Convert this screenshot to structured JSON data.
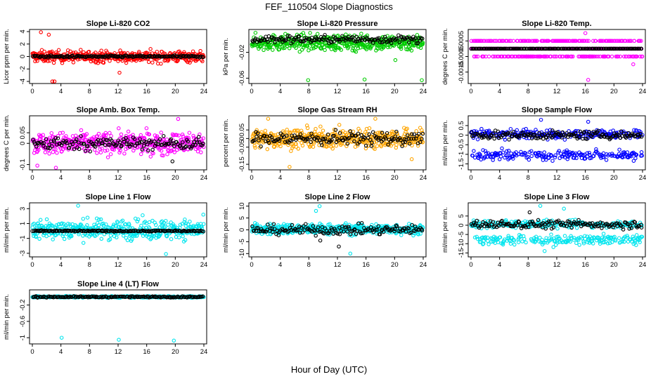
{
  "title": "FEF_110504  Slope Diagnostics",
  "xlabel": "Hour of Day (UTC)",
  "x_ticks": [
    0,
    4,
    8,
    12,
    16,
    20,
    24
  ],
  "x_range": [
    0,
    24
  ],
  "colors": {
    "black": "#000000",
    "red": "#ff0000",
    "green": "#00cc00",
    "magenta": "#ff00ff",
    "orange": "#ffa500",
    "blue": "#0000ff",
    "cyan": "#00e5ee"
  },
  "chart_data": [
    {
      "type": "scatter",
      "title": "Slope Li-820 CO2",
      "ylabel": "Licor ppm per min.",
      "y_ticks": [
        -4,
        -2,
        0,
        2,
        4
      ],
      "ylim": [
        -4.0,
        4.0
      ],
      "series": [
        {
          "color": "#ff0000",
          "pattern": "noise",
          "center": 0.0,
          "spread": 0.9,
          "outliers": [
            [
              1.2,
              3.9
            ],
            [
              2.8,
              -4.0
            ],
            [
              3.1,
              -4.0
            ],
            [
              12.2,
              -2.6
            ],
            [
              2.3,
              3.5
            ]
          ]
        },
        {
          "color": "#000000",
          "pattern": "noise",
          "center": 0.0,
          "spread": 0.15,
          "outliers": []
        }
      ]
    },
    {
      "type": "scatter",
      "title": "Slope Li-820 Pressure",
      "ylabel": "kPa per min.",
      "y_ticks": [
        -0.06,
        -0.02
      ],
      "ylim": [
        -0.065,
        0.012
      ],
      "series": [
        {
          "color": "#00cc00",
          "pattern": "noise",
          "center": -0.005,
          "spread": 0.012,
          "outliers": [
            [
              7.9,
              -0.063
            ],
            [
              15.8,
              -0.062
            ],
            [
              23.8,
              -0.063
            ],
            [
              20.1,
              -0.032
            ]
          ]
        },
        {
          "color": "#000000",
          "pattern": "noise",
          "center": 0.0,
          "spread": 0.006,
          "outliers": []
        }
      ]
    },
    {
      "type": "scatter",
      "title": "Slope Li-820 Temp.",
      "ylabel": "degrees C per min.",
      "y_ticks": [
        -0.0015,
        -0.0005,
        0.0005
      ],
      "ylim": [
        -0.0021,
        0.0011
      ],
      "series": [
        {
          "color": "#ff00ff",
          "pattern": "levels",
          "levels": [
            -0.0005,
            0.0,
            0.0005
          ],
          "outliers": [
            [
              16.4,
              -0.002
            ],
            [
              22.7,
              -0.001
            ],
            [
              16.0,
              0.001
            ]
          ]
        },
        {
          "color": "#000000",
          "pattern": "levels",
          "levels": [
            0.0
          ],
          "outliers": []
        }
      ]
    },
    {
      "type": "scatter",
      "title": "Slope Amb. Box Temp.",
      "ylabel": "degrees C per min.",
      "y_ticks": [
        -0.1,
        0.0,
        0.05
      ],
      "ylim": [
        -0.115,
        0.12
      ],
      "series": [
        {
          "color": "#ff00ff",
          "pattern": "noise",
          "center": 0.0,
          "spread": 0.05,
          "outliers": [
            [
              0.7,
              -0.105
            ],
            [
              3.3,
              -0.115
            ],
            [
              20.4,
              0.115
            ]
          ]
        },
        {
          "color": "#000000",
          "pattern": "noise",
          "center": 0.0,
          "spread": 0.03,
          "outliers": [
            [
              19.6,
              -0.085
            ]
          ]
        }
      ]
    },
    {
      "type": "scatter",
      "title": "Slope Gas Stream RH",
      "ylabel": "percent per min.",
      "y_ticks": [
        -0.15,
        -0.05,
        0.0,
        0.05
      ],
      "ylim": [
        -0.17,
        0.12
      ],
      "series": [
        {
          "color": "#ffa500",
          "pattern": "noise",
          "center": 0.0,
          "spread": 0.055,
          "outliers": [
            [
              5.3,
              -0.165
            ],
            [
              22.4,
              -0.12
            ],
            [
              17.3,
              0.115
            ],
            [
              2.3,
              0.115
            ]
          ]
        },
        {
          "color": "#000000",
          "pattern": "noise",
          "center": 0.0,
          "spread": 0.04,
          "outliers": []
        }
      ]
    },
    {
      "type": "scatter",
      "title": "Slope Sample Flow",
      "ylabel": "ml/min per min.",
      "y_ticks": [
        -1.5,
        -1.0,
        -0.5,
        0.0,
        0.5
      ],
      "ylim": [
        -1.7,
        0.9
      ],
      "series": [
        {
          "color": "#0000ff",
          "pattern": "bands",
          "bands": [
            [
              0.05,
              0.25
            ],
            [
              -1.05,
              0.25
            ]
          ],
          "outliers": [
            [
              9.8,
              0.8
            ],
            [
              16.4,
              0.7
            ]
          ]
        },
        {
          "color": "#000000",
          "pattern": "noise",
          "center": 0.0,
          "spread": 0.2,
          "outliers": []
        }
      ]
    },
    {
      "type": "scatter",
      "title": "Slope Line 1 Flow",
      "ylabel": "ml/min per min.",
      "y_ticks": [
        -3,
        -1,
        1,
        3
      ],
      "ylim": [
        -3.2,
        3.5
      ],
      "series": [
        {
          "color": "#00e5ee",
          "pattern": "noise",
          "center": 0.2,
          "spread": 1.3,
          "outliers": [
            [
              6.4,
              3.4
            ],
            [
              18.7,
              -3.1
            ]
          ]
        },
        {
          "color": "#000000",
          "pattern": "noise",
          "center": 0.0,
          "spread": 0.08,
          "outliers": []
        }
      ]
    },
    {
      "type": "scatter",
      "title": "Slope Line 2 Flow",
      "ylabel": "ml/min per min.",
      "y_ticks": [
        -10,
        -5,
        0,
        5,
        10
      ],
      "ylim": [
        -10.5,
        10.5
      ],
      "series": [
        {
          "color": "#00e5ee",
          "pattern": "noise",
          "center": 0.3,
          "spread": 2.2,
          "outliers": [
            [
              9.5,
              10.0
            ],
            [
              13.8,
              -10.0
            ],
            [
              9.0,
              8.0
            ]
          ]
        },
        {
          "color": "#000000",
          "pattern": "noise",
          "center": 0.0,
          "spread": 2.0,
          "outliers": [
            [
              9.6,
              -4.5
            ],
            [
              12.2,
              -7.0
            ]
          ]
        }
      ]
    },
    {
      "type": "scatter",
      "title": "Slope Line 3 Flow",
      "ylabel": "ml/min per min.",
      "y_ticks": [
        -15,
        -10,
        -5,
        0,
        5
      ],
      "ylim": [
        -16,
        11
      ],
      "series": [
        {
          "color": "#00e5ee",
          "pattern": "bands",
          "bands": [
            [
              0.5,
              2.0
            ],
            [
              -8.0,
              2.5
            ]
          ],
          "outliers": [
            [
              9.7,
              10.5
            ],
            [
              13.0,
              9.0
            ],
            [
              10.3,
              -14.0
            ]
          ]
        },
        {
          "color": "#000000",
          "pattern": "noise",
          "center": 0.5,
          "spread": 2.2,
          "outliers": [
            [
              8.2,
              7.0
            ]
          ]
        }
      ]
    },
    {
      "type": "scatter",
      "title": "Slope Line 4 (LT) Flow",
      "ylabel": "ml/min per min.",
      "y_ticks": [
        -1.0,
        -0.6,
        -0.2
      ],
      "ylim": [
        -1.1,
        0.12
      ],
      "series": [
        {
          "color": "#00e5ee",
          "pattern": "noise",
          "center": 0.0,
          "spread": 0.02,
          "outliers": [
            [
              4.1,
              -1.0
            ],
            [
              12.1,
              -1.05
            ],
            [
              19.8,
              -1.07
            ]
          ]
        },
        {
          "color": "#000000",
          "pattern": "noise",
          "center": 0.0,
          "spread": 0.015,
          "outliers": []
        }
      ]
    }
  ]
}
